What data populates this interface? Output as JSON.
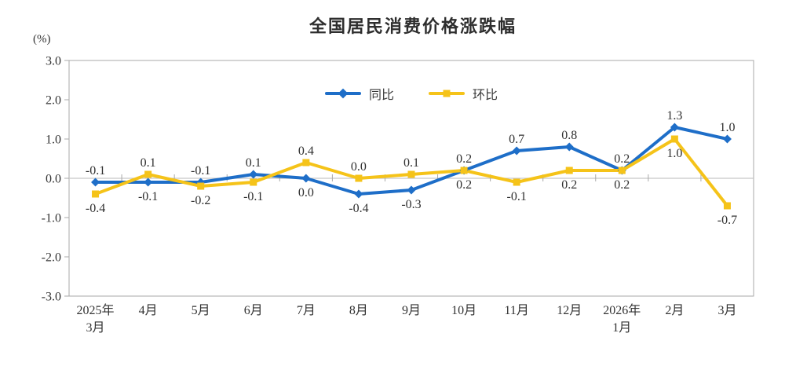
{
  "page": {
    "background": "#ffffff"
  },
  "chart_data": {
    "type": "line",
    "title": "全国居民消费价格涨跌幅",
    "unit_label": "(%)",
    "categories": [
      [
        "2025年",
        "3月"
      ],
      [
        "4月"
      ],
      [
        "5月"
      ],
      [
        "6月"
      ],
      [
        "7月"
      ],
      [
        "8月"
      ],
      [
        "9月"
      ],
      [
        "10月"
      ],
      [
        "11月"
      ],
      [
        "12月"
      ],
      [
        "2026年",
        "1月"
      ],
      [
        "2月"
      ],
      [
        "3月"
      ]
    ],
    "series": [
      {
        "id": "yoy",
        "name": "同比",
        "color": "#1E6EC8",
        "marker": "diamond",
        "values": [
          -0.1,
          -0.1,
          -0.1,
          0.1,
          0.0,
          -0.4,
          -0.3,
          0.2,
          0.7,
          0.8,
          0.2,
          1.3,
          1.0
        ]
      },
      {
        "id": "mom",
        "name": "环比",
        "color": "#F5C319",
        "marker": "square",
        "values": [
          -0.4,
          0.1,
          -0.2,
          -0.1,
          0.4,
          0.0,
          0.1,
          0.2,
          -0.1,
          0.2,
          0.2,
          1.0,
          -0.7
        ]
      }
    ],
    "ylim": [
      -3.0,
      3.0
    ],
    "yticks": [
      {
        "value": 3.0,
        "label": "3.0"
      },
      {
        "value": 2.0,
        "label": "2.0"
      },
      {
        "value": 1.0,
        "label": "1.0"
      },
      {
        "value": 0.0,
        "label": "0.0"
      },
      {
        "value": -1.0,
        "label": "-1.0"
      },
      {
        "value": -2.0,
        "label": "-2.0"
      },
      {
        "value": -3.0,
        "label": "-3.0"
      }
    ],
    "grid": "zero-line-only",
    "legend_position": "top-center",
    "colors": {
      "frame": "#A8A8A8",
      "zero_line": "#C6C6C6",
      "tick": "#A8A8A8",
      "label_text": "#2f2f2f",
      "axis_text": "#333333"
    }
  }
}
